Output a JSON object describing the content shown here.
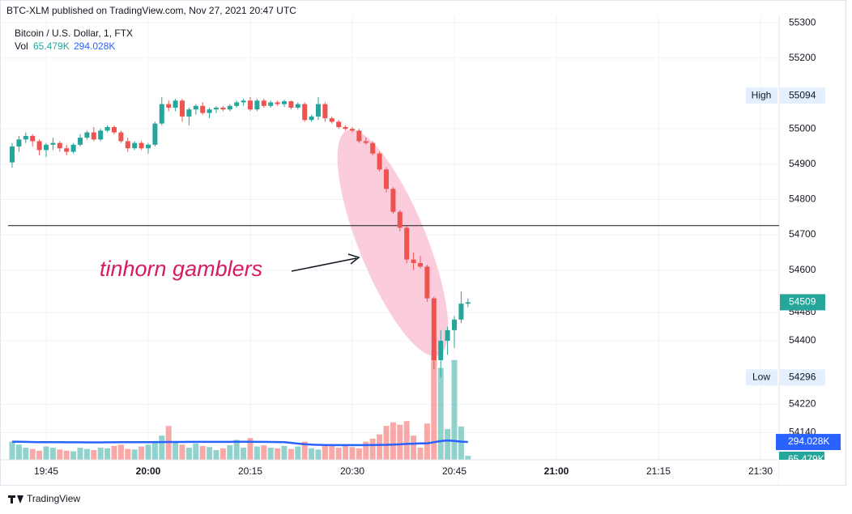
{
  "header": "BTC-XLM published on TradingView.com, Nov 27, 2021 20:47 UTC",
  "footer": "TradingView",
  "chart_data": {
    "type": "candlestick",
    "title": "Bitcoin / U.S. Dollar, 1, FTX",
    "volume_label": "Vol",
    "volume_value_label": "65.479K",
    "volume_ma_label": "294.028K",
    "up_color": "#26a69a",
    "down_color": "#ef5350",
    "times": [
      "19:40",
      "19:41",
      "19:42",
      "19:43",
      "19:44",
      "19:45",
      "19:46",
      "19:47",
      "19:48",
      "19:49",
      "19:50",
      "19:51",
      "19:52",
      "19:53",
      "19:54",
      "19:55",
      "19:56",
      "19:57",
      "19:58",
      "19:59",
      "20:00",
      "20:01",
      "20:02",
      "20:03",
      "20:04",
      "20:05",
      "20:06",
      "20:07",
      "20:08",
      "20:09",
      "20:10",
      "20:11",
      "20:12",
      "20:13",
      "20:14",
      "20:15",
      "20:16",
      "20:17",
      "20:18",
      "20:19",
      "20:20",
      "20:21",
      "20:22",
      "20:23",
      "20:24",
      "20:25",
      "20:26",
      "20:27",
      "20:28",
      "20:29",
      "20:30",
      "20:31",
      "20:32",
      "20:33",
      "20:34",
      "20:35",
      "20:36",
      "20:37",
      "20:38",
      "20:39",
      "20:40",
      "20:41",
      "20:42",
      "20:43",
      "20:44",
      "20:45",
      "20:46",
      "20:47"
    ],
    "ohlc": [
      [
        54905,
        54960,
        54890,
        54950
      ],
      [
        54950,
        54980,
        54935,
        54970
      ],
      [
        54970,
        54990,
        54960,
        54980
      ],
      [
        54980,
        54985,
        54950,
        54965
      ],
      [
        54965,
        54970,
        54925,
        54940
      ],
      [
        54940,
        54960,
        54920,
        54955
      ],
      [
        54955,
        54975,
        54940,
        54960
      ],
      [
        54960,
        54965,
        54935,
        54945
      ],
      [
        54945,
        54955,
        54925,
        54935
      ],
      [
        54935,
        54960,
        54930,
        54955
      ],
      [
        54955,
        54985,
        54950,
        54975
      ],
      [
        54975,
        54995,
        54970,
        54990
      ],
      [
        54990,
        55005,
        54965,
        54970
      ],
      [
        54970,
        55000,
        54965,
        54995
      ],
      [
        54995,
        55010,
        54990,
        55005
      ],
      [
        55005,
        55010,
        54985,
        54990
      ],
      [
        54990,
        54995,
        54960,
        54965
      ],
      [
        54965,
        54975,
        54935,
        54945
      ],
      [
        54945,
        54965,
        54940,
        54960
      ],
      [
        54960,
        54965,
        54940,
        54945
      ],
      [
        54945,
        54960,
        54930,
        54955
      ],
      [
        54955,
        55020,
        54950,
        55015
      ],
      [
        55015,
        55090,
        55010,
        55070
      ],
      [
        55070,
        55080,
        55050,
        55060
      ],
      [
        55060,
        55085,
        55050,
        55080
      ],
      [
        55080,
        55085,
        55020,
        55035
      ],
      [
        55035,
        55060,
        55010,
        55055
      ],
      [
        55055,
        55070,
        55040,
        55065
      ],
      [
        55065,
        55075,
        55040,
        55045
      ],
      [
        55045,
        55060,
        55030,
        55055
      ],
      [
        55055,
        55065,
        55045,
        55060
      ],
      [
        55060,
        55065,
        55050,
        55055
      ],
      [
        55055,
        55070,
        55050,
        55065
      ],
      [
        55065,
        55080,
        55060,
        55075
      ],
      [
        55075,
        55085,
        55065,
        55080
      ],
      [
        55080,
        55090,
        55050,
        55055
      ],
      [
        55055,
        55085,
        55050,
        55080
      ],
      [
        55080,
        55085,
        55060,
        55065
      ],
      [
        55065,
        55080,
        55060,
        55075
      ],
      [
        55075,
        55080,
        55065,
        55070
      ],
      [
        55070,
        55082,
        55062,
        55078
      ],
      [
        55078,
        55080,
        55055,
        55060
      ],
      [
        55060,
        55075,
        55055,
        55070
      ],
      [
        55070,
        55075,
        55020,
        55025
      ],
      [
        55025,
        55040,
        55020,
        55035
      ],
      [
        55035,
        55090,
        55025,
        55070
      ],
      [
        55070,
        55075,
        55020,
        55030
      ],
      [
        55030,
        55035,
        55015,
        55020
      ],
      [
        55020,
        55025,
        55000,
        55005
      ],
      [
        55005,
        55010,
        54995,
        55000
      ],
      [
        55000,
        55005,
        54990,
        54995
      ],
      [
        54995,
        55000,
        54960,
        54965
      ],
      [
        54965,
        54975,
        54955,
        54960
      ],
      [
        54960,
        54965,
        54925,
        54930
      ],
      [
        54930,
        54935,
        54880,
        54885
      ],
      [
        54885,
        54890,
        54820,
        54830
      ],
      [
        54830,
        54835,
        54760,
        54765
      ],
      [
        54765,
        54770,
        54710,
        54720
      ],
      [
        54720,
        54725,
        54620,
        54630
      ],
      [
        54630,
        54650,
        54600,
        54620
      ],
      [
        54620,
        54640,
        54605,
        54610
      ],
      [
        54610,
        54615,
        54510,
        54520
      ],
      [
        54520,
        54525,
        54320,
        54345
      ],
      [
        54345,
        54430,
        54296,
        54400
      ],
      [
        54400,
        54440,
        54360,
        54430
      ],
      [
        54430,
        54470,
        54380,
        54460
      ],
      [
        54460,
        54540,
        54450,
        54505
      ],
      [
        54505,
        54520,
        54495,
        54509
      ]
    ],
    "volume": [
      300,
      250,
      200,
      180,
      150,
      220,
      200,
      170,
      150,
      140,
      200,
      180,
      160,
      200,
      190,
      230,
      250,
      180,
      170,
      220,
      250,
      300,
      400,
      560,
      300,
      250,
      200,
      270,
      230,
      210,
      160,
      190,
      240,
      330,
      200,
      360,
      220,
      240,
      200,
      190,
      230,
      180,
      220,
      300,
      190,
      170,
      230,
      260,
      200,
      240,
      210,
      190,
      300,
      350,
      420,
      560,
      620,
      580,
      640,
      400,
      200,
      600,
      1800,
      1520,
      510,
      1650,
      550,
      65.479
    ],
    "volume_ma": {
      "color": "#2962ff",
      "values": [
        300,
        298,
        296,
        294,
        292,
        291,
        290,
        290,
        289,
        289,
        289,
        288,
        288,
        288,
        289,
        289,
        290,
        290,
        290,
        291,
        292,
        293,
        294,
        295,
        295,
        295,
        296,
        296,
        296,
        296,
        296,
        296,
        296,
        297,
        297,
        297,
        296,
        296,
        295,
        294,
        292,
        280,
        268,
        258,
        250,
        246,
        244,
        243,
        242,
        242,
        242,
        242,
        243,
        244,
        246,
        248,
        252,
        256,
        262,
        266,
        270,
        272,
        290,
        310,
        320,
        312,
        300,
        294.028
      ]
    },
    "vlim": [
      0,
      7340
    ],
    "ylim": [
      54063,
      55319
    ],
    "yticks": [
      55300,
      55200,
      55000,
      54900,
      54800,
      54700,
      54600,
      54480,
      54400,
      54220,
      54140
    ],
    "xticks": [
      "19:45",
      "20:00",
      "20:15",
      "20:30",
      "20:45",
      "21:00",
      "21:15",
      "21:30"
    ],
    "high_label": "High",
    "high": 55094,
    "low_label": "Low",
    "low": 54296,
    "last": 54509,
    "hline": 54726,
    "annotation": "tinhorn gamblers",
    "grid": true
  }
}
